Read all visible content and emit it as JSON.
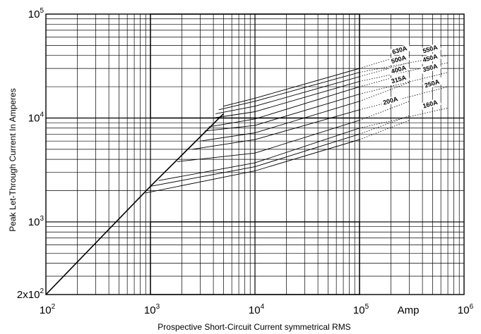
{
  "chart_data": {
    "type": "line",
    "xscale": "log",
    "yscale": "log",
    "xlim": [
      100,
      1000000
    ],
    "ylim": [
      200,
      100000
    ],
    "xlabel": "Prospective Short-Circuit Current symmetrical RMS",
    "ylabel": "Peak Let-Through Current In Amperes",
    "x_unit": "Amp",
    "x_ticks": [
      {
        "value": 100,
        "base": "10",
        "exp": "2"
      },
      {
        "value": 1000,
        "base": "10",
        "exp": "3"
      },
      {
        "value": 10000,
        "base": "10",
        "exp": "4"
      },
      {
        "value": 100000,
        "base": "10",
        "exp": "5"
      },
      {
        "value": 1000000,
        "base": "10",
        "exp": "6"
      }
    ],
    "y_ticks": [
      {
        "value": 200,
        "base": "2x10",
        "exp": "2"
      },
      {
        "value": 1000,
        "base": "10",
        "exp": "3"
      },
      {
        "value": 10000,
        "base": "10",
        "exp": "4"
      },
      {
        "value": 100000,
        "base": "10",
        "exp": "5"
      }
    ],
    "grid": true,
    "limit_line": {
      "x": [
        100,
        1000,
        2000,
        5000
      ],
      "y": [
        200,
        2200,
        4400,
        11000
      ]
    },
    "series": [
      {
        "name": "630A",
        "x": [
          5000,
          10000,
          100000,
          300000
        ],
        "y": [
          13000,
          15500,
          30000,
          42000
        ],
        "label_pos": [
          245000,
          43000
        ]
      },
      {
        "name": "550A",
        "x": [
          4500,
          10000,
          100000,
          700000
        ],
        "y": [
          12000,
          14500,
          27500,
          40000
        ],
        "label_pos": [
          480000,
          44000
        ]
      },
      {
        "name": "500A",
        "x": [
          4200,
          10000,
          100000,
          300000
        ],
        "y": [
          11000,
          13000,
          25000,
          34000
        ],
        "label_pos": [
          240000,
          35000
        ]
      },
      {
        "name": "450A",
        "x": [
          4000,
          10000,
          100000,
          700000
        ],
        "y": [
          10000,
          11500,
          22500,
          34000
        ],
        "label_pos": [
          480000,
          36000
        ]
      },
      {
        "name": "400A",
        "x": [
          3600,
          10000,
          100000,
          300000
        ],
        "y": [
          8200,
          9800,
          20000,
          27000
        ],
        "label_pos": [
          240000,
          28000
        ]
      },
      {
        "name": "350A",
        "x": [
          3300,
          10000,
          100000,
          700000
        ],
        "y": [
          7500,
          8500,
          17000,
          27500
        ],
        "label_pos": [
          480000,
          29000
        ]
      },
      {
        "name": "315A",
        "x": [
          3000,
          10000,
          100000,
          300000
        ],
        "y": [
          6000,
          7200,
          14500,
          22000
        ],
        "label_pos": [
          240000,
          22500
        ]
      },
      {
        "name": "250A",
        "x": [
          2500,
          10000,
          100000,
          700000
        ],
        "y": [
          5000,
          6200,
          12000,
          20000
        ],
        "label_pos": [
          500000,
          20500
        ]
      },
      {
        "name": "200A",
        "x": [
          1800,
          10000,
          100000,
          300000
        ],
        "y": [
          3800,
          4600,
          9500,
          14500
        ],
        "label_pos": [
          200000,
          14000
        ]
      },
      {
        "name": "160A",
        "x": [
          1200,
          10000,
          100000,
          700000
        ],
        "y": [
          2500,
          3700,
          8000,
          12500
        ],
        "label_pos": [
          480000,
          13000
        ]
      },
      {
        "name": "",
        "x": [
          1000,
          10000,
          100000,
          300000
        ],
        "y": [
          2200,
          3400,
          7000,
          10500
        ]
      },
      {
        "name": "",
        "x": [
          900,
          10000,
          100000,
          300000
        ],
        "y": [
          1900,
          3100,
          6200,
          9500
        ]
      }
    ]
  }
}
